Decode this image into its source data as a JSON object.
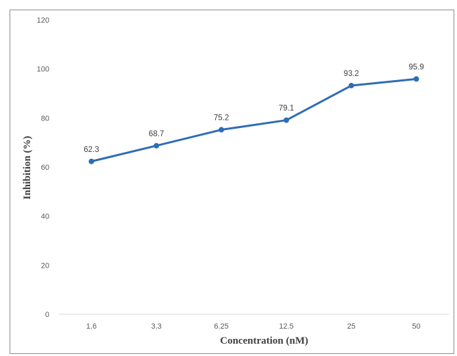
{
  "chart_data": {
    "type": "line",
    "categories": [
      "1.6",
      "3.3",
      "6.25",
      "12.5",
      "25",
      "50"
    ],
    "series": [
      {
        "values": [
          62.3,
          68.7,
          75.2,
          79.1,
          93.2,
          95.9
        ]
      }
    ],
    "data_labels": [
      "62.3",
      "68.7",
      "75.2",
      "79.1",
      "93.2",
      "95.9"
    ],
    "xlabel": "Concentration (nM)",
    "ylabel": "Inhibition (%)",
    "ylim": [
      0,
      120
    ],
    "yticks": [
      0,
      20,
      40,
      60,
      80,
      100,
      120
    ],
    "ytick_labels": [
      "0",
      "20",
      "40",
      "60",
      "80",
      "100",
      "120"
    ],
    "grid": false,
    "line_color": "#2e6db4",
    "marker": "circle"
  }
}
